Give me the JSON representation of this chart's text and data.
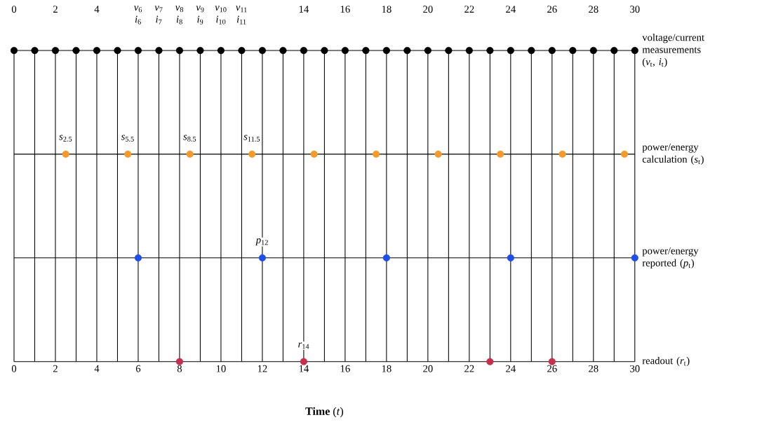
{
  "chart_data": {
    "type": "scatter",
    "orientation": "horizontal",
    "xlabel": "**Time** (*t*)",
    "categories": [
      "voltage/current measurements (*v*$_{t}$, *i*$_{t}$)",
      "power/energy calculation (*s*$_{t}$)",
      "power/energy reported (*p*$_{t}$)",
      "readout (*r*$_{t}$)"
    ],
    "series": [
      {
        "color": "#000000",
        "x": [
          "voltage/current measurements (*v*$_{t}$, *i*$_{t}$)",
          "voltage/current measurements (*v*$_{t}$, *i*$_{t}$)",
          "voltage/current measurements (*v*$_{t}$, *i*$_{t}$)",
          "voltage/current measurements (*v*$_{t}$, *i*$_{t}$)",
          "voltage/current measurements (*v*$_{t}$, *i*$_{t}$)",
          "voltage/current measurements (*v*$_{t}$, *i*$_{t}$)",
          "voltage/current measurements (*v*$_{t}$, *i*$_{t}$)",
          "voltage/current measurements (*v*$_{t}$, *i*$_{t}$)",
          "voltage/current measurements (*v*$_{t}$, *i*$_{t}$)",
          "voltage/current measurements (*v*$_{t}$, *i*$_{t}$)",
          "voltage/current measurements (*v*$_{t}$, *i*$_{t}$)",
          "voltage/current measurements (*v*$_{t}$, *i*$_{t}$)",
          "voltage/current measurements (*v*$_{t}$, *i*$_{t}$)",
          "voltage/current measurements (*v*$_{t}$, *i*$_{t}$)",
          "voltage/current measurements (*v*$_{t}$, *i*$_{t}$)",
          "voltage/current measurements (*v*$_{t}$, *i*$_{t}$)",
          "voltage/current measurements (*v*$_{t}$, *i*$_{t}$)",
          "voltage/current measurements (*v*$_{t}$, *i*$_{t}$)",
          "voltage/current measurements (*v*$_{t}$, *i*$_{t}$)",
          "voltage/current measurements (*v*$_{t}$, *i*$_{t}$)",
          "voltage/current measurements (*v*$_{t}$, *i*$_{t}$)",
          "voltage/current measurements (*v*$_{t}$, *i*$_{t}$)",
          "voltage/current measurements (*v*$_{t}$, *i*$_{t}$)",
          "voltage/current measurements (*v*$_{t}$, *i*$_{t}$)",
          "voltage/current measurements (*v*$_{t}$, *i*$_{t}$)",
          "voltage/current measurements (*v*$_{t}$, *i*$_{t}$)",
          "voltage/current measurements (*v*$_{t}$, *i*$_{t}$)",
          "voltage/current measurements (*v*$_{t}$, *i*$_{t}$)",
          "voltage/current measurements (*v*$_{t}$, *i*$_{t}$)",
          "voltage/current measurements (*v*$_{t}$, *i*$_{t}$)",
          "voltage/current measurements (*v*$_{t}$, *i*$_{t}$)"
        ],
        "values": [
          0,
          1,
          2,
          3,
          4,
          5,
          6,
          7,
          8,
          9,
          10,
          11,
          12,
          13,
          14,
          15,
          16,
          17,
          18,
          19,
          20,
          21,
          22,
          23,
          24,
          25,
          26,
          27,
          28,
          29,
          30
        ]
      },
      {
        "color": "#f39a2b",
        "x": [
          "power/energy calculation (*s*$_{t}$)",
          "power/energy calculation (*s*$_{t}$)",
          "power/energy calculation (*s*$_{t}$)",
          "power/energy calculation (*s*$_{t}$)",
          "power/energy calculation (*s*$_{t}$)",
          "power/energy calculation (*s*$_{t}$)",
          "power/energy calculation (*s*$_{t}$)",
          "power/energy calculation (*s*$_{t}$)",
          "power/energy calculation (*s*$_{t}$)",
          "power/energy calculation (*s*$_{t}$)"
        ],
        "values": [
          2.5,
          5.5,
          8.5,
          11.5,
          14.5,
          17.5,
          20.5,
          23.5,
          26.5,
          29.5
        ]
      },
      {
        "color": "#1f4fe6",
        "x": [
          "power/energy reported (*p*$_{t}$)",
          "power/energy reported (*p*$_{t}$)",
          "power/energy reported (*p*$_{t}$)",
          "power/energy reported (*p*$_{t}$)",
          "power/energy reported (*p*$_{t}$)"
        ],
        "values": [
          6,
          12,
          18,
          24,
          30
        ]
      },
      {
        "color": "#c4304e",
        "x": [
          "readout (*r*$_{t}$)",
          "readout (*r*$_{t}$)",
          "readout (*r*$_{t}$)",
          "readout (*r*$_{t}$)"
        ],
        "values": [
          8,
          14,
          23,
          26
        ]
      }
    ],
    "xlim": [
      0,
      30
    ],
    "xticks": [
      0,
      {
        "value": 1,
        "label": null
      },
      2,
      {
        "value": 3,
        "label": null
      },
      4,
      {
        "value": 5,
        "label": null
      },
      6,
      {
        "value": 7,
        "label": null
      },
      8,
      {
        "value": 9,
        "label": null
      },
      10,
      {
        "value": 11,
        "label": null
      },
      12,
      {
        "value": 13,
        "label": null
      },
      14,
      {
        "value": 15,
        "label": null
      },
      16,
      {
        "value": 17,
        "label": null
      },
      18,
      {
        "value": 19,
        "label": null
      },
      20,
      {
        "value": 21,
        "label": null
      },
      22,
      {
        "value": 23,
        "label": null
      },
      24,
      {
        "value": 25,
        "label": null
      },
      26,
      {
        "value": 27,
        "label": null
      },
      28,
      {
        "value": 29,
        "label": null
      },
      30
    ],
    "x2lim": [
      0,
      30
    ],
    "x2ticks": [
      0,
      2,
      4,
      {
        "value": 6,
        "label": "*v*$_{6}$ *i*$_{6}$"
      },
      {
        "value": 7,
        "label": "*v*$_{7}$ *i*$_{7}$"
      },
      {
        "value": 8,
        "label": "*v*$_{8}$ *i*$_{8}$"
      },
      {
        "value": 9,
        "label": "*v*$_{9}$ *i*$_{9}$"
      },
      {
        "value": 10,
        "label": "*v*$_{10}$ *i*$_{10}$"
      },
      {
        "value": 11,
        "label": "*v*$_{11}$ *i*$_{11}$"
      },
      14,
      16,
      18,
      20,
      22,
      24,
      26,
      28,
      30
    ],
    "annotations": [
      {
        "text": "*s*$_{2.5}$",
        "x": 2.5,
        "y": "power/energy calculation (*s*$_{t}$)"
      },
      {
        "text": "*s*$_{5.5}$",
        "x": 5.5,
        "y": "power/energy calculation (*s*$_{t}$)"
      },
      {
        "text": "*s*$_{8.5}$",
        "x": 8.5,
        "y": "power/energy calculation (*s*$_{t}$)"
      },
      {
        "text": "*s*$_{11.5}$",
        "x": 11.5,
        "y": "power/energy calculation (*s*$_{t}$)"
      },
      {
        "text": "*p*$_{12}$",
        "x": 12,
        "y": "power/energy reported (*p*$_{t}$)"
      },
      {
        "text": "*r*$_{14}$",
        "x": 14,
        "y": "readout (*r*$_{t}$)"
      }
    ],
    "grid": true,
    "marker": "circle"
  }
}
